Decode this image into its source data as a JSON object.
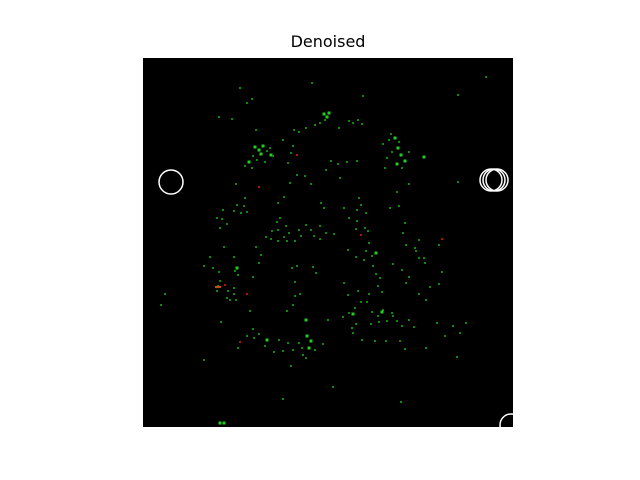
{
  "figure": {
    "title": "Denoised"
  },
  "image": {
    "background_color": "#000000",
    "dot_colors": {
      "bright": "#22cc22",
      "dim": "#0c8a0c",
      "red": "#b01010",
      "orange": "#c05010"
    },
    "marker_ring_color": "#ffffff"
  }
}
